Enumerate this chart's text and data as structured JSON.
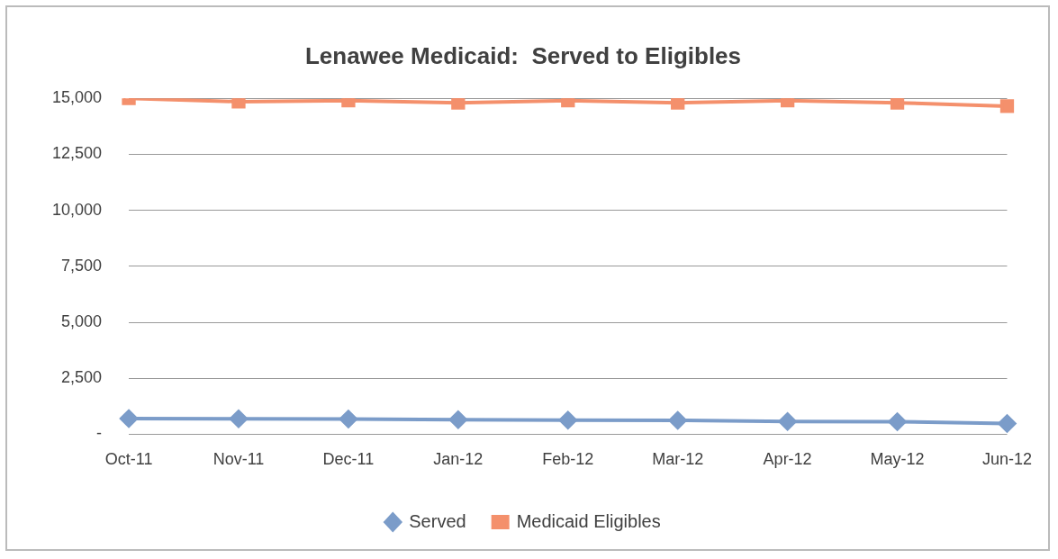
{
  "chart_data": {
    "type": "line",
    "title": "Lenawee Medicaid:  Served to Eligibles",
    "categories": [
      "Oct-11",
      "Nov-11",
      "Dec-11",
      "Jan-12",
      "Feb-12",
      "Mar-12",
      "Apr-12",
      "May-12",
      "Jun-12"
    ],
    "series": [
      {
        "name": "Served",
        "color": "#7b9cc9",
        "marker": "diamond",
        "values": [
          700,
          690,
          680,
          650,
          630,
          620,
          570,
          560,
          480
        ]
      },
      {
        "name": "Medicaid Eligibles",
        "color": "#f4906c",
        "marker": "square",
        "values": [
          15000,
          14850,
          14900,
          14800,
          14900,
          14800,
          14900,
          14800,
          14650
        ]
      }
    ],
    "ylim": [
      0,
      15000
    ],
    "yticks": [
      {
        "value": 0,
        "label": "-"
      },
      {
        "value": 2500,
        "label": "2,500"
      },
      {
        "value": 5000,
        "label": "5,000"
      },
      {
        "value": 7500,
        "label": "7,500"
      },
      {
        "value": 10000,
        "label": "10,000"
      },
      {
        "value": 12500,
        "label": "12,500"
      },
      {
        "value": 15000,
        "label": "15,000"
      }
    ],
    "grid": "y",
    "legend": "bottom"
  }
}
